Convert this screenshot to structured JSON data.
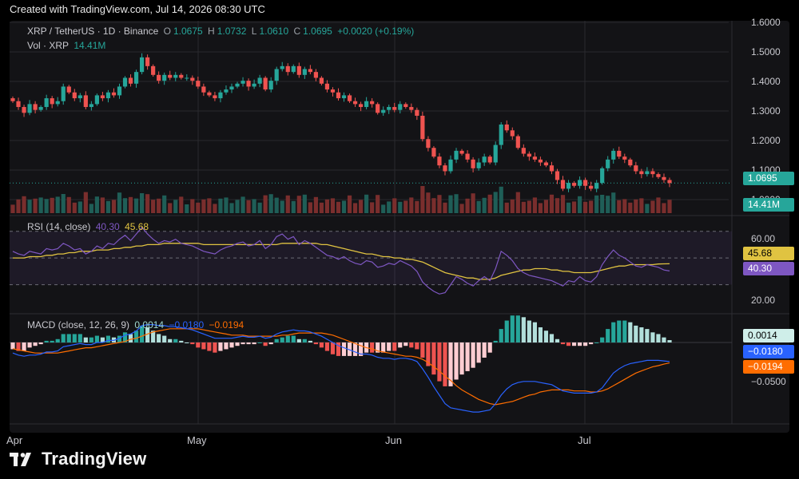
{
  "header": {
    "credit": "Created with TradingView.com, Jul 14, 2026 08:30 UTC"
  },
  "legend": {
    "symbol": "XRP / TetherUS · 1D · Binance",
    "o_label": "O",
    "o_value": "1.0675",
    "h_label": "H",
    "h_value": "1.0732",
    "l_label": "L",
    "l_value": "1.0610",
    "c_label": "C",
    "c_value": "1.0695",
    "change": "+0.0020 (+0.19%)",
    "vol_label": "Vol · XRP",
    "vol_value": "14.41M"
  },
  "rsi_legend": {
    "label": "RSI (14, close)",
    "rsi_value": "40.30",
    "ma_value": "45.68"
  },
  "macd_legend": {
    "label": "MACD (close, 12, 26, 9)",
    "hist_value": "0.0014",
    "macd_value": "−0.0180",
    "signal_value": "−0.0194"
  },
  "price_axis": {
    "ticks": [
      "1.6000",
      "1.5000",
      "1.4000",
      "1.3000",
      "1.2000",
      "1.1000",
      "1.0000"
    ]
  },
  "rsi_axis": {
    "ticks": [
      "60.00",
      "20.00"
    ]
  },
  "macd_axis": {
    "ticks": [
      "−0.0500"
    ]
  },
  "price_tags": {
    "last_price": "1.0695",
    "volume": "14.41M",
    "rsi": "40.30",
    "rsi_ma": "45.68",
    "hist": "0.0014",
    "macd": "−0.0180",
    "signal": "−0.0194"
  },
  "date_axis": {
    "labels": [
      "Apr",
      "May",
      "Jun",
      "Jul"
    ]
  },
  "brand": {
    "name": "TradingView"
  },
  "colors": {
    "up": "#26a69a",
    "down": "#ef5350",
    "rsi": "#7e57c2",
    "rsi_ma": "#e0c341",
    "macd": "#2962ff",
    "signal": "#ff6d00",
    "background": "#131316"
  },
  "chart_data": {
    "type": "candlestick",
    "symbol": "XRP / TetherUS",
    "interval": "1D",
    "exchange": "Binance",
    "x_range": [
      "2026-03-31",
      "2026-07-14"
    ],
    "date_axis_labels": [
      "Apr",
      "May",
      "Jun",
      "Jul"
    ],
    "price_axis": {
      "ylim": [
        0.98,
        1.62
      ],
      "ticks": [
        1.0,
        1.1,
        1.2,
        1.3,
        1.4,
        1.5,
        1.6
      ]
    },
    "close_path": [
      1.35,
      1.33,
      1.31,
      1.34,
      1.32,
      1.33,
      1.36,
      1.34,
      1.35,
      1.4,
      1.38,
      1.36,
      1.37,
      1.33,
      1.34,
      1.37,
      1.36,
      1.38,
      1.37,
      1.4,
      1.43,
      1.41,
      1.45,
      1.5,
      1.47,
      1.44,
      1.42,
      1.44,
      1.43,
      1.44,
      1.43,
      1.43,
      1.42,
      1.4,
      1.38,
      1.37,
      1.36,
      1.38,
      1.39,
      1.4,
      1.41,
      1.42,
      1.4,
      1.41,
      1.43,
      1.39,
      1.42,
      1.46,
      1.47,
      1.45,
      1.47,
      1.44,
      1.46,
      1.45,
      1.43,
      1.41,
      1.39,
      1.38,
      1.36,
      1.37,
      1.35,
      1.34,
      1.33,
      1.35,
      1.34,
      1.31,
      1.32,
      1.33,
      1.32,
      1.34,
      1.33,
      1.32,
      1.3,
      1.22,
      1.19,
      1.16,
      1.13,
      1.11,
      1.15,
      1.18,
      1.17,
      1.15,
      1.12,
      1.14,
      1.16,
      1.14,
      1.2,
      1.27,
      1.25,
      1.23,
      1.19,
      1.17,
      1.16,
      1.15,
      1.14,
      1.13,
      1.11,
      1.08,
      1.05,
      1.07,
      1.06,
      1.08,
      1.06,
      1.05,
      1.07,
      1.12,
      1.15,
      1.18,
      1.16,
      1.15,
      1.13,
      1.11,
      1.1,
      1.11,
      1.1,
      1.09,
      1.08,
      1.0695
    ],
    "rsi": {
      "period": 14,
      "value": 40.3,
      "ma_value": 45.68,
      "ticks": [
        20,
        60
      ],
      "band": [
        30,
        70
      ],
      "path": [
        55,
        53,
        52,
        55,
        54,
        53,
        57,
        56,
        57,
        61,
        59,
        56,
        57,
        53,
        55,
        59,
        57,
        61,
        60,
        64,
        67,
        63,
        68,
        73,
        68,
        64,
        61,
        63,
        62,
        64,
        61,
        60,
        59,
        57,
        55,
        54,
        53,
        56,
        58,
        59,
        61,
        62,
        59,
        60,
        63,
        57,
        60,
        66,
        68,
        64,
        66,
        60,
        63,
        61,
        58,
        55,
        52,
        51,
        49,
        51,
        48,
        46,
        45,
        48,
        47,
        43,
        44,
        46,
        45,
        48,
        46,
        44,
        40,
        32,
        28,
        25,
        23,
        24,
        30,
        36,
        34,
        31,
        29,
        33,
        36,
        33,
        42,
        55,
        52,
        48,
        42,
        39,
        37,
        36,
        35,
        34,
        33,
        31,
        29,
        33,
        32,
        36,
        33,
        32,
        36,
        45,
        51,
        56,
        52,
        50,
        47,
        44,
        43,
        45,
        44,
        43,
        41,
        40.3
      ],
      "ma_path": [
        50,
        50,
        50,
        51,
        51,
        51,
        52,
        52,
        53,
        53,
        54,
        54,
        55,
        55,
        55,
        56,
        56,
        56,
        57,
        57,
        58,
        58,
        59,
        59,
        60,
        60,
        60,
        61,
        61,
        61,
        61,
        61,
        61,
        61,
        60,
        60,
        60,
        60,
        60,
        60,
        60,
        60,
        60,
        60,
        60,
        60,
        60,
        60,
        61,
        61,
        61,
        61,
        61,
        61,
        61,
        60,
        60,
        59,
        58,
        57,
        56,
        55,
        54,
        53,
        53,
        52,
        51,
        51,
        50,
        50,
        49,
        49,
        48,
        47,
        45,
        43,
        41,
        39,
        38,
        37,
        36,
        35,
        35,
        34,
        34,
        34,
        35,
        37,
        38,
        39,
        40,
        41,
        41,
        42,
        42,
        42,
        41,
        41,
        40,
        40,
        39,
        39,
        39,
        39,
        40,
        41,
        42,
        43,
        44,
        44,
        45,
        45,
        45,
        45,
        45,
        45.5,
        45.6,
        45.68
      ]
    },
    "macd": {
      "params": [
        12,
        26,
        9
      ],
      "histogram": 0.0014,
      "macd": -0.018,
      "signal": -0.0194,
      "ticks": [
        -0.05
      ],
      "macd_path": [
        -0.01,
        -0.012,
        -0.013,
        -0.012,
        -0.012,
        -0.011,
        -0.009,
        -0.009,
        -0.008,
        -0.004,
        -0.003,
        -0.002,
        -0.001,
        -0.002,
        -0.002,
        0.0,
        0.0,
        0.002,
        0.002,
        0.004,
        0.007,
        0.008,
        0.011,
        0.016,
        0.017,
        0.017,
        0.016,
        0.016,
        0.015,
        0.015,
        0.014,
        0.013,
        0.012,
        0.01,
        0.008,
        0.006,
        0.004,
        0.004,
        0.004,
        0.004,
        0.005,
        0.006,
        0.005,
        0.005,
        0.006,
        0.004,
        0.005,
        0.008,
        0.01,
        0.011,
        0.012,
        0.011,
        0.011,
        0.01,
        0.008,
        0.006,
        0.003,
        0.0,
        -0.003,
        -0.005,
        -0.007,
        -0.009,
        -0.011,
        -0.011,
        -0.012,
        -0.014,
        -0.015,
        -0.015,
        -0.016,
        -0.015,
        -0.015,
        -0.016,
        -0.018,
        -0.025,
        -0.033,
        -0.042,
        -0.05,
        -0.058,
        -0.062,
        -0.063,
        -0.064,
        -0.065,
        -0.066,
        -0.066,
        -0.065,
        -0.064,
        -0.058,
        -0.05,
        -0.044,
        -0.04,
        -0.038,
        -0.037,
        -0.037,
        -0.037,
        -0.038,
        -0.039,
        -0.04,
        -0.043,
        -0.046,
        -0.047,
        -0.048,
        -0.048,
        -0.048,
        -0.048,
        -0.047,
        -0.043,
        -0.036,
        -0.029,
        -0.025,
        -0.022,
        -0.02,
        -0.019,
        -0.018,
        -0.017,
        -0.017,
        -0.017,
        -0.0175,
        -0.018
      ],
      "signal_path": [
        -0.006,
        -0.007,
        -0.008,
        -0.009,
        -0.01,
        -0.01,
        -0.01,
        -0.01,
        -0.01,
        -0.009,
        -0.008,
        -0.007,
        -0.006,
        -0.005,
        -0.005,
        -0.004,
        -0.003,
        -0.002,
        -0.001,
        0.0,
        0.001,
        0.003,
        0.004,
        0.006,
        0.008,
        0.01,
        0.011,
        0.012,
        0.013,
        0.013,
        0.013,
        0.013,
        0.013,
        0.013,
        0.012,
        0.011,
        0.01,
        0.009,
        0.008,
        0.007,
        0.007,
        0.007,
        0.006,
        0.006,
        0.006,
        0.006,
        0.006,
        0.006,
        0.007,
        0.007,
        0.008,
        0.009,
        0.009,
        0.009,
        0.009,
        0.009,
        0.008,
        0.007,
        0.005,
        0.003,
        0.001,
        -0.001,
        -0.003,
        -0.005,
        -0.006,
        -0.008,
        -0.009,
        -0.01,
        -0.011,
        -0.012,
        -0.013,
        -0.013,
        -0.014,
        -0.016,
        -0.019,
        -0.023,
        -0.027,
        -0.032,
        -0.036,
        -0.041,
        -0.045,
        -0.048,
        -0.051,
        -0.054,
        -0.056,
        -0.058,
        -0.059,
        -0.058,
        -0.057,
        -0.056,
        -0.054,
        -0.052,
        -0.05,
        -0.049,
        -0.047,
        -0.046,
        -0.045,
        -0.045,
        -0.045,
        -0.045,
        -0.046,
        -0.046,
        -0.046,
        -0.047,
        -0.047,
        -0.046,
        -0.044,
        -0.041,
        -0.038,
        -0.035,
        -0.032,
        -0.029,
        -0.027,
        -0.025,
        -0.023,
        -0.022,
        -0.0205,
        -0.0194
      ]
    }
  }
}
